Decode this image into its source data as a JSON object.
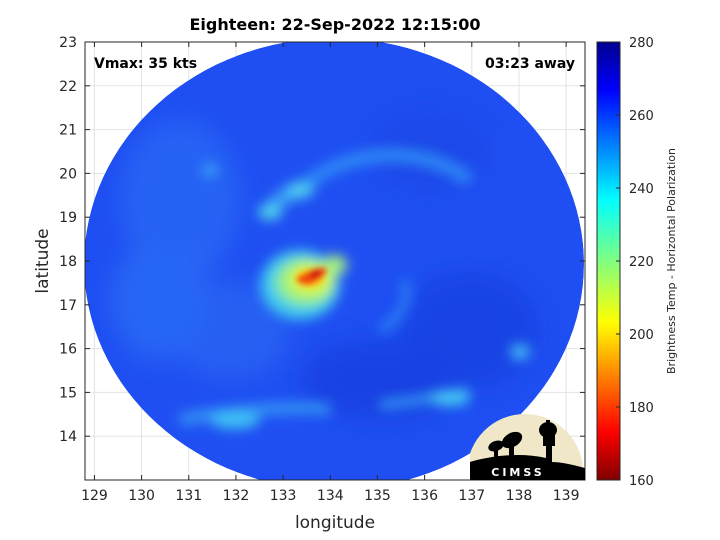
{
  "chart_data": {
    "type": "heatmap",
    "title": "Eighteen: 22-Sep-2022 12:15:00",
    "xlabel": "longitude",
    "ylabel": "latitude",
    "xlim": [
      128.8,
      139.4
    ],
    "ylim": [
      13.0,
      23.0
    ],
    "xticks": [
      129,
      130,
      131,
      132,
      133,
      134,
      135,
      136,
      137,
      138,
      139
    ],
    "yticks": [
      14,
      15,
      16,
      17,
      18,
      19,
      20,
      21,
      22,
      23
    ],
    "grid": true,
    "annotations": {
      "top_left": "Vmax: 35 kts",
      "top_right": "03:23 away"
    },
    "colorbar": {
      "label": "Brightness Temp - Horizontal Polarization",
      "min": 160,
      "max": 280,
      "ticks": [
        160,
        180,
        200,
        220,
        240,
        260,
        280
      ],
      "colormap": "jet"
    },
    "swath": {
      "center_lon": 133.9,
      "center_lat": 17.8,
      "background_value": 262
    },
    "features": [
      {
        "lon": 133.75,
        "lat": 17.65,
        "value": 182
      },
      {
        "lon": 133.45,
        "lat": 17.55,
        "value": 205
      },
      {
        "lon": 133.5,
        "lat": 17.35,
        "value": 215
      },
      {
        "lon": 133.0,
        "lat": 17.0,
        "value": 232
      },
      {
        "lon": 132.6,
        "lat": 18.9,
        "value": 240
      },
      {
        "lon": 133.7,
        "lat": 19.8,
        "value": 245
      },
      {
        "lon": 135.2,
        "lat": 20.2,
        "value": 248
      },
      {
        "lon": 132.9,
        "lat": 15.4,
        "value": 250
      },
      {
        "lon": 135.2,
        "lat": 14.6,
        "value": 245
      },
      {
        "lon": 131.3,
        "lat": 14.5,
        "value": 245
      },
      {
        "lon": 134.3,
        "lat": 16.2,
        "value": 250
      }
    ]
  },
  "logo": {
    "text": "CIMSS",
    "colors": {
      "background": "#f0e6c8",
      "silhouette": "#000000",
      "text": "#ffffff"
    }
  }
}
